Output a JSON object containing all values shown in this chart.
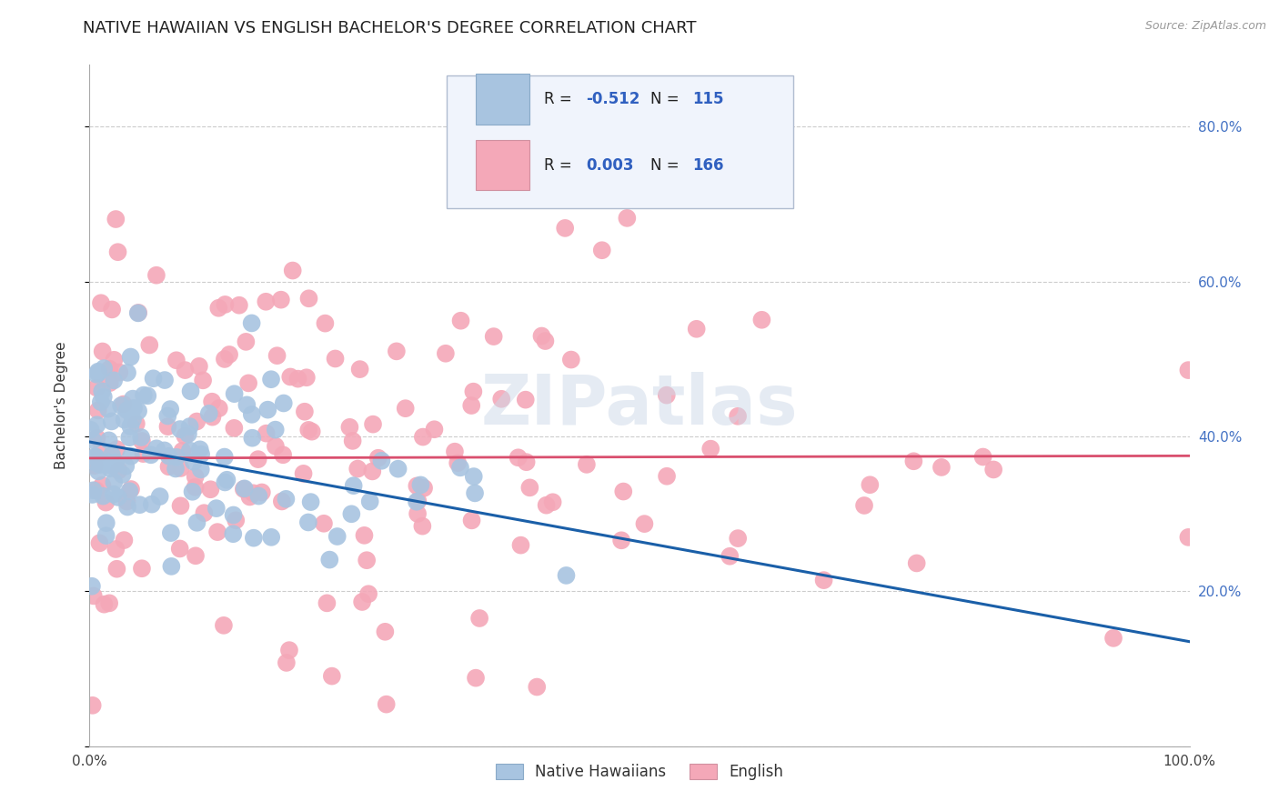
{
  "title": "NATIVE HAWAIIAN VS ENGLISH BACHELOR'S DEGREE CORRELATION CHART",
  "source": "Source: ZipAtlas.com",
  "ylabel": "Bachelor's Degree",
  "blue_R_label": "R = ",
  "blue_R_val": "-0.512",
  "blue_N_label": "N = ",
  "blue_N_val": "115",
  "pink_R_label": "R = ",
  "pink_R_val": "0.003",
  "pink_N_label": "N = ",
  "pink_N_val": "166",
  "blue_legend": "Native Hawaiians",
  "pink_legend": "English",
  "yticks": [
    0.0,
    0.2,
    0.4,
    0.6,
    0.8
  ],
  "ytick_labels": [
    "",
    "20.0%",
    "40.0%",
    "60.0%",
    "80.0%"
  ],
  "xlim": [
    0.0,
    1.0
  ],
  "ylim": [
    0.0,
    0.88
  ],
  "blue_trend_x": [
    0.0,
    1.0
  ],
  "blue_trend_y": [
    0.393,
    0.135
  ],
  "pink_trend_x": [
    0.0,
    1.0
  ],
  "pink_trend_y": [
    0.372,
    0.375
  ],
  "watermark": "ZIPatlas",
  "title_fontsize": 13,
  "axis_label_fontsize": 11,
  "tick_fontsize": 11,
  "background_color": "#ffffff",
  "blue_dot_color": "#a8c4e0",
  "pink_dot_color": "#f4a8b8",
  "blue_line_color": "#1a5fa8",
  "pink_line_color": "#d94f6e",
  "right_tick_color": "#4472c4",
  "text_dark": "#222222",
  "text_blue": "#3060c0",
  "seed": 42
}
